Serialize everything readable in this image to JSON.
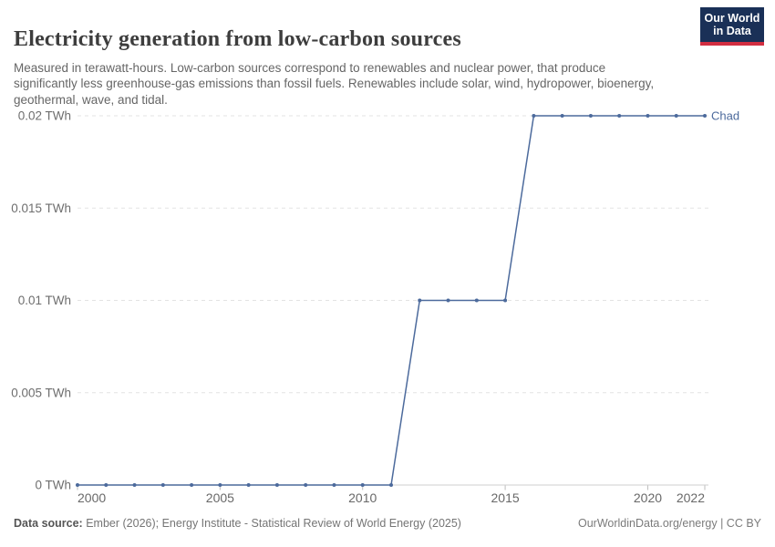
{
  "header": {
    "title": "Electricity generation from low-carbon sources",
    "subtitle": "Measured in terawatt-hours. Low-carbon sources correspond to renewables and nuclear power, that produce significantly less greenhouse-gas emissions than fossil fuels. Renewables include solar, wind, hydropower, bioenergy, geothermal, wave, and tidal."
  },
  "logo": {
    "line1": "Our World",
    "line2": "in Data",
    "bg_color": "#1a3057",
    "accent_color": "#d22e41"
  },
  "chart_data": {
    "type": "line",
    "title": "Electricity generation from low-carbon sources",
    "ylabel": "",
    "xlabel": "",
    "unit": "TWh",
    "xlim": [
      2000,
      2022
    ],
    "ylim": [
      0,
      0.02
    ],
    "grid": "horizontal-dashed",
    "legend_position": "end-of-line",
    "x": [
      2000,
      2001,
      2002,
      2003,
      2004,
      2005,
      2006,
      2007,
      2008,
      2009,
      2010,
      2011,
      2012,
      2013,
      2014,
      2015,
      2016,
      2017,
      2018,
      2019,
      2020,
      2021,
      2022
    ],
    "series": [
      {
        "name": "Chad",
        "color": "#4C6A9C",
        "values": [
          0,
          0,
          0,
          0,
          0,
          0,
          0,
          0,
          0,
          0,
          0,
          0,
          0.01,
          0.01,
          0.01,
          0.01,
          0.02,
          0.02,
          0.02,
          0.02,
          0.02,
          0.02,
          0.02
        ]
      }
    ],
    "yticks": [
      {
        "value": 0,
        "label": "0 TWh"
      },
      {
        "value": 0.005,
        "label": "0.005 TWh"
      },
      {
        "value": 0.01,
        "label": "0.01 TWh"
      },
      {
        "value": 0.015,
        "label": "0.015 TWh"
      },
      {
        "value": 0.02,
        "label": "0.02 TWh"
      }
    ],
    "xticks": [
      2000,
      2005,
      2010,
      2015,
      2020,
      2022
    ]
  },
  "footer": {
    "source_label": "Data source:",
    "source_text": "Ember (2026); Energy Institute - Statistical Review of World Energy (2025)",
    "credit": "OurWorldinData.org/energy | CC BY"
  }
}
